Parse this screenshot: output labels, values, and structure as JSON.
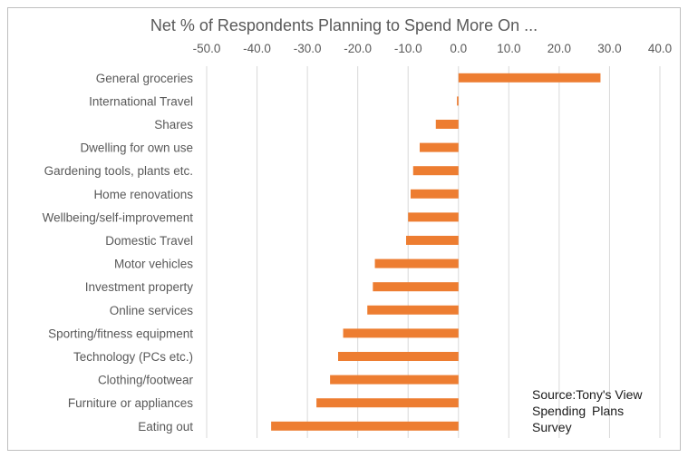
{
  "chart_data": {
    "type": "bar",
    "orientation": "horizontal",
    "title": "Net % of Respondents Planning to Spend More On ...",
    "categories": [
      "General groceries",
      "International Travel",
      "Shares",
      "Dwelling for own use",
      "Gardening tools, plants etc.",
      "Home renovations",
      "Wellbeing/self-improvement",
      "Domestic Travel",
      "Motor vehicles",
      "Investment property",
      "Online services",
      "Sporting/fitness equipment",
      "Technology (PCs etc.)",
      "Clothing/footwear",
      "Furniture or appliances",
      "Eating out"
    ],
    "values": [
      28.2,
      -0.3,
      -4.5,
      -7.7,
      -9.0,
      -9.5,
      -10.0,
      -10.4,
      -16.6,
      -17.0,
      -18.1,
      -22.9,
      -23.9,
      -25.5,
      -28.2,
      -37.2
    ],
    "xlim": [
      -50,
      40
    ],
    "ticks": [
      "-50.0",
      "-40.0",
      "-30.0",
      "-20.0",
      "-10.0",
      "0.0",
      "10.0",
      "20.0",
      "30.0",
      "40.0"
    ],
    "tick_values": [
      -50,
      -40,
      -30,
      -20,
      -10,
      0,
      10,
      20,
      30,
      40
    ],
    "axis_position": "top",
    "grid": true,
    "bar_color": "#ED7D31",
    "annotation": [
      "Source:Tony's View",
      "Spending  Plans",
      "Survey"
    ]
  }
}
